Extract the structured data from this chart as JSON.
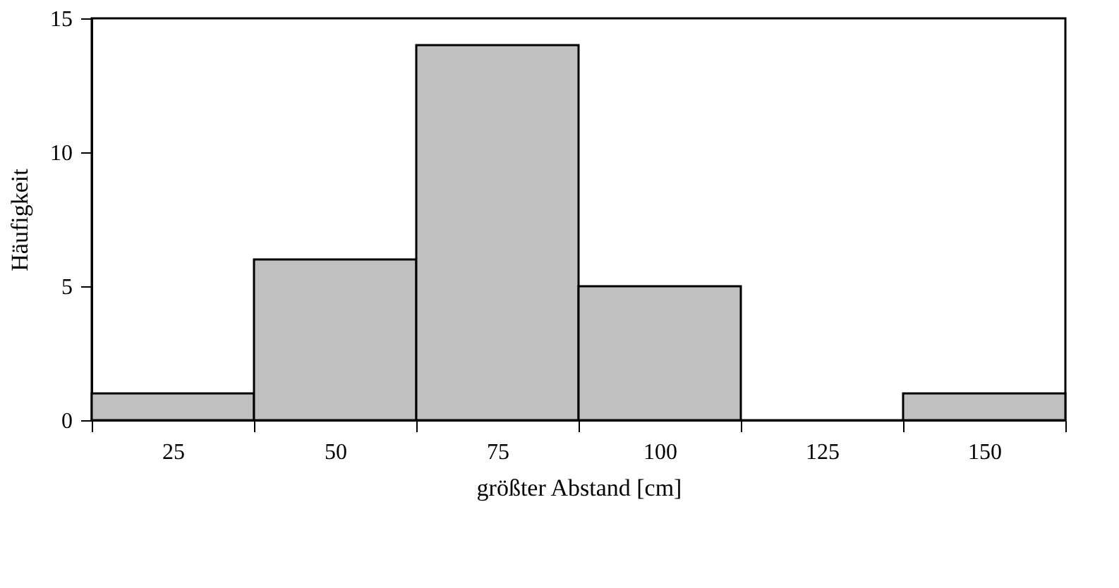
{
  "chart_data": {
    "type": "histogram",
    "xlabel": "größter Abstand [cm]",
    "ylabel": "Häufigkeit",
    "bins": [
      12.5,
      37.5,
      62.5,
      87.5,
      112.5,
      137.5,
      162.5
    ],
    "values": [
      1,
      6,
      14,
      5,
      0,
      1
    ],
    "color": "#c0c0c0",
    "xlim": [
      12.5,
      162.5
    ],
    "xticks": [
      {
        "value": 12.5,
        "label": null
      },
      25,
      {
        "value": 37.5,
        "label": null
      },
      50,
      {
        "value": 62.5,
        "label": null
      },
      75,
      {
        "value": 87.5,
        "label": null
      },
      100,
      {
        "value": 112.5,
        "label": null
      },
      125,
      {
        "value": 137.5,
        "label": null
      },
      150,
      {
        "value": 162.5,
        "label": null
      }
    ],
    "ylim": [
      0,
      15
    ],
    "yticks": [
      0,
      5,
      10,
      15
    ],
    "grid": false
  }
}
